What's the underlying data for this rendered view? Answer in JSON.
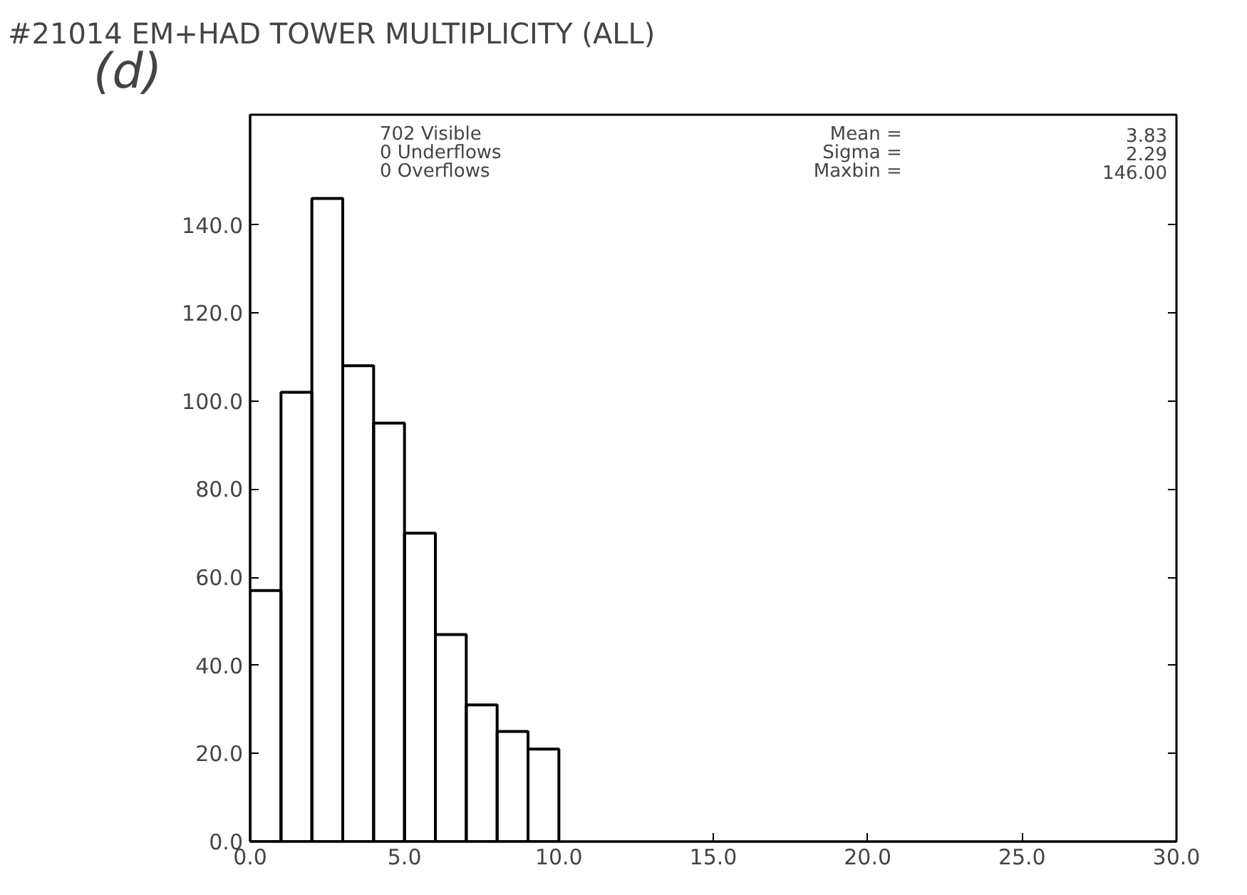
{
  "chart_data": {
    "type": "histogram",
    "title": "#21014   EM+HAD TOWER MULTIPLICITY (ALL)",
    "bins": [
      0,
      1,
      2,
      3,
      4,
      5,
      6,
      7,
      8,
      9,
      10
    ],
    "values": [
      57,
      102,
      146,
      108,
      95,
      70,
      47,
      31,
      25,
      21
    ],
    "color": "#000000",
    "xlim": [
      0,
      30
    ],
    "xticks": [
      {
        "value": 0,
        "label": "0.0"
      },
      {
        "value": 5,
        "label": "5.0"
      },
      {
        "value": 10,
        "label": "10.0"
      },
      {
        "value": 15,
        "label": "15.0"
      },
      {
        "value": 20,
        "label": "20.0"
      },
      {
        "value": 25,
        "label": "25.0"
      },
      {
        "value": 30,
        "label": "30.0"
      }
    ],
    "ylim": [
      0,
      165
    ],
    "yticks": [
      {
        "value": 0,
        "label": "0.0"
      },
      {
        "value": 20,
        "label": "20.0"
      },
      {
        "value": 40,
        "label": "40.0"
      },
      {
        "value": 60,
        "label": "60.0"
      },
      {
        "value": 80,
        "label": "80.0"
      },
      {
        "value": 100,
        "label": "100.0"
      },
      {
        "value": 120,
        "label": "120.0"
      },
      {
        "value": 140,
        "label": "140.0"
      }
    ],
    "annotations": [
      "(d)",
      "702  Visible",
      "0  Underflows",
      "0  Overflows",
      "Mean  =",
      "Sigma  =",
      "Maxbin  =",
      "3.83",
      "2.29",
      "146.00"
    ],
    "grid": false
  }
}
